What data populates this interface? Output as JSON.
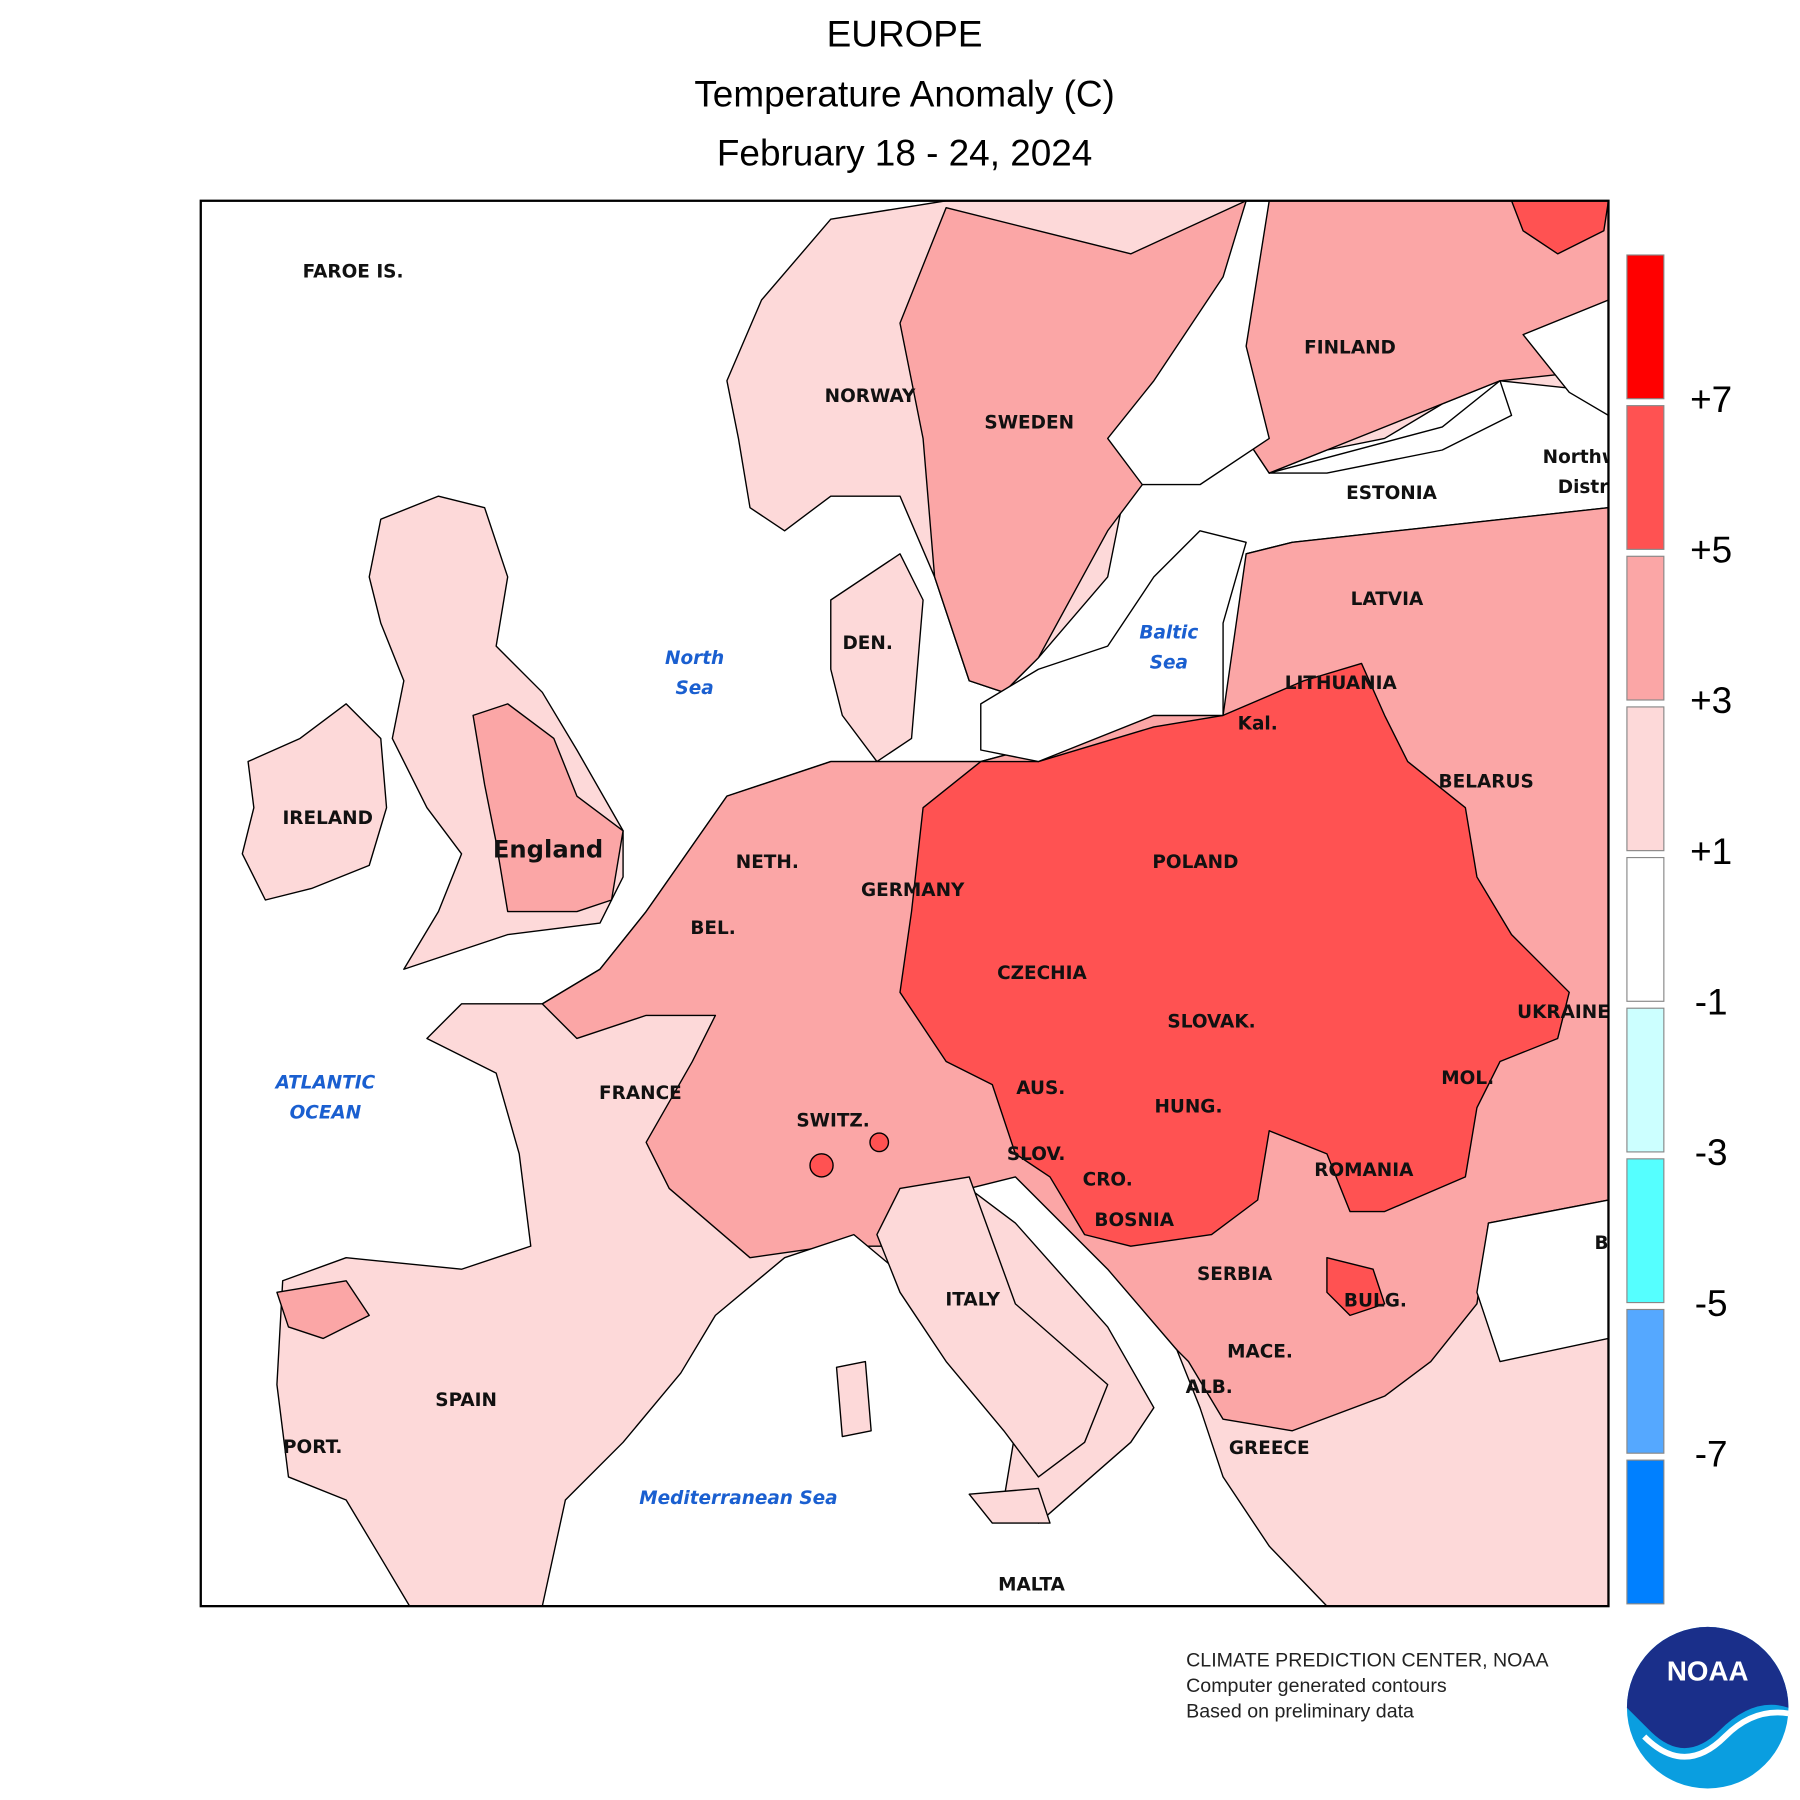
{
  "header": {
    "title_lines": [
      "EUROPE",
      "Temperature Anomaly (C)",
      "February 18 - 24, 2024"
    ]
  },
  "map": {
    "country_labels": [
      "FAROE IS.",
      "NORWAY",
      "SWEDEN",
      "FINLAND",
      "ESTONIA",
      "LATVIA",
      "LITHUANIA",
      "Kal.",
      "DEN.",
      "IRELAND",
      "England",
      "NETH.",
      "GERMANY",
      "POLAND",
      "BELARUS",
      "BEL.",
      "CZECHIA",
      "SLOVAK.",
      "UKRAINE",
      "AUS.",
      "FRANCE",
      "SWITZ.",
      "HUNG.",
      "MOL.",
      "ROMANIA",
      "SLOV.",
      "CRO.",
      "BOSNIA",
      "SERBIA",
      "ITALY",
      "BULG.",
      "MACE.",
      "ALB.",
      "SPAIN",
      "PORT.",
      "GREECE",
      "MALTA",
      "Northw",
      "Distr",
      "B"
    ],
    "sea_labels": [
      [
        "North",
        "Sea"
      ],
      [
        "Baltic",
        "Sea"
      ],
      [
        "ATLANTIC",
        "OCEAN"
      ],
      [
        "Mediterranean Sea"
      ]
    ]
  },
  "legend": {
    "colors": [
      "#ff0000",
      "#ff5252",
      "#fba6a6",
      "#fdd9d9",
      "#ffffff",
      "#ccffff",
      "#55ffff",
      "#55a8ff",
      "#0080ff"
    ],
    "ticks": [
      "+7",
      "+5",
      "+3",
      "+1",
      "-1",
      "-3",
      "-5",
      "-7"
    ]
  },
  "credit": {
    "lines": [
      "CLIMATE PREDICTION CENTER, NOAA",
      "Computer generated contours",
      "Based on preliminary data"
    ],
    "logo": "NOAA"
  }
}
